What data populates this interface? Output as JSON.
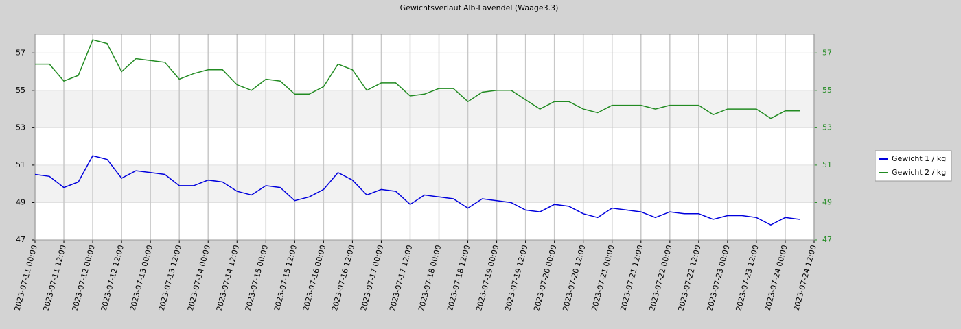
{
  "chart_data": {
    "type": "line",
    "title": "Gewichtsverlauf Alb-Lavendel (Waage3.3)",
    "x": [
      "2023-07-11 00:00",
      "2023-07-11 06:00",
      "2023-07-11 12:00",
      "2023-07-11 18:00",
      "2023-07-12 00:00",
      "2023-07-12 06:00",
      "2023-07-12 12:00",
      "2023-07-12 18:00",
      "2023-07-13 00:00",
      "2023-07-13 06:00",
      "2023-07-13 12:00",
      "2023-07-13 18:00",
      "2023-07-14 00:00",
      "2023-07-14 06:00",
      "2023-07-14 12:00",
      "2023-07-14 18:00",
      "2023-07-15 00:00",
      "2023-07-15 06:00",
      "2023-07-15 12:00",
      "2023-07-15 18:00",
      "2023-07-16 00:00",
      "2023-07-16 06:00",
      "2023-07-16 12:00",
      "2023-07-16 18:00",
      "2023-07-17 00:00",
      "2023-07-17 06:00",
      "2023-07-17 12:00",
      "2023-07-17 18:00",
      "2023-07-18 00:00",
      "2023-07-18 06:00",
      "2023-07-18 12:00",
      "2023-07-18 18:00",
      "2023-07-19 00:00",
      "2023-07-19 06:00",
      "2023-07-19 12:00",
      "2023-07-19 18:00",
      "2023-07-20 00:00",
      "2023-07-20 06:00",
      "2023-07-20 12:00",
      "2023-07-20 18:00",
      "2023-07-21 00:00",
      "2023-07-21 06:00",
      "2023-07-21 12:00",
      "2023-07-21 18:00",
      "2023-07-22 00:00",
      "2023-07-22 06:00",
      "2023-07-22 12:00",
      "2023-07-22 18:00",
      "2023-07-23 00:00",
      "2023-07-23 06:00",
      "2023-07-23 12:00",
      "2023-07-23 18:00",
      "2023-07-24 00:00",
      "2023-07-24 06:00"
    ],
    "series": [
      {
        "name": "Gewicht 1 / kg",
        "color": "#0000dd",
        "values": [
          50.5,
          50.4,
          49.8,
          50.1,
          51.5,
          51.3,
          50.3,
          50.7,
          50.6,
          50.5,
          49.9,
          49.9,
          50.2,
          50.1,
          49.6,
          49.4,
          49.9,
          49.8,
          49.1,
          49.3,
          49.7,
          50.6,
          50.2,
          49.4,
          49.7,
          49.6,
          48.9,
          49.4,
          49.3,
          49.2,
          48.7,
          49.2,
          49.1,
          49.0,
          48.6,
          48.5,
          48.9,
          48.8,
          48.4,
          48.2,
          48.7,
          48.6,
          48.5,
          48.2,
          48.5,
          48.4,
          48.4,
          48.1,
          48.3,
          48.3,
          48.2,
          47.8,
          48.2,
          48.1
        ]
      },
      {
        "name": "Gewicht 2 / kg",
        "color": "#228b22",
        "axis": "y2",
        "values": [
          56.4,
          56.4,
          55.5,
          55.8,
          57.7,
          57.5,
          56.0,
          56.7,
          56.6,
          56.5,
          55.6,
          55.9,
          56.1,
          56.1,
          55.3,
          55.0,
          55.6,
          55.5,
          54.8,
          54.8,
          55.2,
          56.4,
          56.1,
          55.0,
          55.4,
          55.4,
          54.7,
          54.8,
          55.1,
          55.1,
          54.4,
          54.9,
          55.0,
          55.0,
          54.5,
          54.0,
          54.4,
          54.4,
          54.0,
          53.8,
          54.2,
          54.2,
          54.2,
          54.0,
          54.2,
          54.2,
          54.2,
          53.7,
          54.0,
          54.0,
          54.0,
          53.5,
          53.9,
          53.9
        ]
      }
    ],
    "xlim": [
      "2023-07-11 00:00",
      "2023-07-24 12:00"
    ],
    "xticks": [
      "2023-07-11 00:00",
      "2023-07-11 12:00",
      "2023-07-12 00:00",
      "2023-07-12 12:00",
      "2023-07-13 00:00",
      "2023-07-13 12:00",
      "2023-07-14 00:00",
      "2023-07-14 12:00",
      "2023-07-15 00:00",
      "2023-07-15 12:00",
      "2023-07-16 00:00",
      "2023-07-16 12:00",
      "2023-07-17 00:00",
      "2023-07-17 12:00",
      "2023-07-18 00:00",
      "2023-07-18 12:00",
      "2023-07-19 00:00",
      "2023-07-19 12:00",
      "2023-07-20 00:00",
      "2023-07-20 12:00",
      "2023-07-21 00:00",
      "2023-07-21 12:00",
      "2023-07-22 00:00",
      "2023-07-22 12:00",
      "2023-07-23 00:00",
      "2023-07-23 12:00",
      "2023-07-24 00:00",
      "2023-07-24 12:00"
    ],
    "ylim": [
      47,
      58
    ],
    "yticks": [
      47,
      49,
      51,
      53,
      55,
      57
    ],
    "y2lim": [
      47,
      58
    ],
    "y2ticks": [
      47,
      49,
      51,
      53,
      55,
      57
    ],
    "bands": [
      [
        49,
        51
      ],
      [
        53,
        55
      ]
    ],
    "grid": true,
    "legend": "right"
  }
}
